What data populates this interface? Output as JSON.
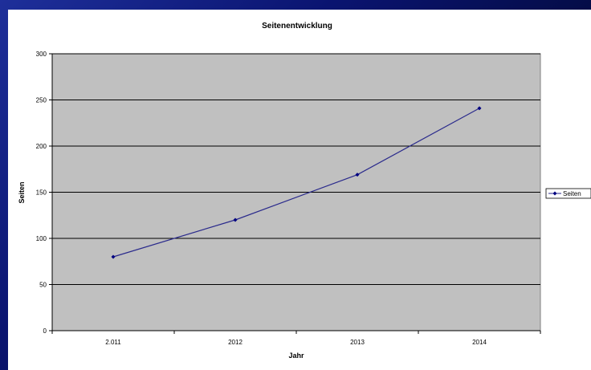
{
  "chart_data": {
    "type": "line",
    "title": "Seitenentwicklung",
    "xlabel": "Jahr",
    "ylabel": "Seiten",
    "categories": [
      "2.011",
      "2012",
      "2013",
      "2014"
    ],
    "series": [
      {
        "name": "Seiten",
        "values": [
          80,
          120,
          169,
          241
        ],
        "color": "#2a2a8c"
      }
    ],
    "ylim": [
      0,
      300
    ],
    "yticks": [
      0,
      50,
      100,
      150,
      200,
      250,
      300
    ],
    "grid": true,
    "legend": "right",
    "plot_background": "#c0c0c0",
    "gridline_color": "#000000"
  }
}
